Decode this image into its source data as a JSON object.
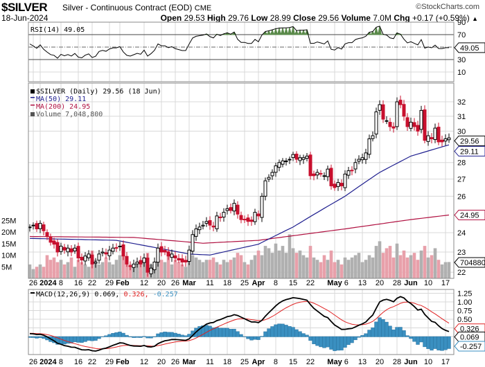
{
  "header": {
    "symbol": "$SILVER",
    "description": "Silver - Continuous Contract (EOD)",
    "exchange": "CME",
    "brand": "©StockCharts.com",
    "date": "18-Jun-2024",
    "open_label": "Open",
    "open": "29.53",
    "high_label": "High",
    "high": "29.76",
    "low_label": "Low",
    "low": "28.99",
    "close_label": "Close",
    "close": "29.56",
    "volume_label": "Volume",
    "volume": "7.0M",
    "chg_label": "Chg",
    "chg": "+0.17 (+0.59%)",
    "chg_arrow": "▲"
  },
  "colors": {
    "up": "#000000",
    "down": "#c8102e",
    "ma50": "#1f1f8f",
    "ma200": "#b01040",
    "vol_up": "#b0b0b0",
    "vol_down": "#e8a0aa",
    "macd": "#000000",
    "signal": "#e02020",
    "hist": "#3a8fc0",
    "grid": "#d8d8d8"
  },
  "chart_data": [
    {
      "type": "line",
      "title": "RSI(14) 49.05",
      "legend": "RSI(14) 49.05",
      "yticks": [
        90,
        70,
        30,
        10
      ],
      "ylim": [
        0,
        100
      ],
      "guides": [
        70,
        50,
        30
      ],
      "last_label": "49.05"
    },
    {
      "type": "candlestick",
      "title": "$SILVER (Daily) 29.56 (18 Jun)",
      "legend": [
        "$SILVER (Daily) 29.56 (18 Jun)",
        "MA(50) 29.11",
        "MA(200) 24.95",
        "Volume 7,048,800"
      ],
      "yticks": [
        32,
        31,
        30,
        28,
        27,
        26,
        24,
        23,
        22
      ],
      "vol_ticks": [
        "25M",
        "20M",
        "15M",
        "10M",
        "5M"
      ],
      "vol_tick_values": [
        25,
        20,
        15,
        10,
        5
      ],
      "last_labels": {
        "close": "29.56",
        "ma50": "29.11",
        "ma200": "24.95",
        "volume": "7048800"
      },
      "closes": [
        24.3,
        24.4,
        24.2,
        24.5,
        24.1,
        23.8,
        23.5,
        23.4,
        23.0,
        23.3,
        23.1,
        23.2,
        23.0,
        23.2,
        22.7,
        22.6,
        22.8,
        22.9,
        22.4,
        22.5,
        22.9,
        23.0,
        22.9,
        23.1,
        23.2,
        23.2,
        23.3,
        22.8,
        22.4,
        22.3,
        22.4,
        22.5,
        22.4,
        22.7,
        22.0,
        22.2,
        22.5,
        23.2,
        23.0,
        23.0,
        22.8,
        22.9,
        22.7,
        22.6,
        22.5,
        22.5,
        23.1,
        23.9,
        24.2,
        24.3,
        24.4,
        24.6,
        24.4,
        24.3,
        24.9,
        24.8,
        25.1,
        25.3,
        25.2,
        25.6,
        25.0,
        24.7,
        24.7,
        24.6,
        24.6,
        25.1,
        24.9,
        26.0,
        26.9,
        27.1,
        27.4,
        27.8,
        28.0,
        28.1,
        28.1,
        28.2,
        28.5,
        28.2,
        28.3,
        28.3,
        28.4,
        27.2,
        27.2,
        27.4,
        27.3,
        27.2,
        27.6,
        26.6,
        26.5,
        26.8,
        26.6,
        27.3,
        27.5,
        27.5,
        28.0,
        28.2,
        28.3,
        28.6,
        29.5,
        29.7,
        31.3,
        31.8,
        30.8,
        30.7,
        30.3,
        30.2,
        32.0,
        31.8,
        31.0,
        30.3,
        30.6,
        30.3,
        30.0,
        31.4,
        29.4,
        29.7,
        29.5,
        30.2,
        29.3,
        29.3,
        29.5,
        29.56
      ],
      "volumes_millions": [
        6,
        4,
        5,
        6,
        5,
        10,
        8,
        9,
        7,
        8,
        6,
        7,
        9,
        5,
        8,
        7,
        6,
        5,
        12,
        8,
        6,
        7,
        9,
        7,
        6,
        8,
        10,
        13,
        7,
        6,
        5,
        6,
        7,
        9,
        11,
        6,
        7,
        12,
        8,
        7,
        10,
        6,
        8,
        7,
        6,
        5,
        9,
        10,
        9,
        8,
        7,
        8,
        8,
        9,
        7,
        6,
        8,
        7,
        8,
        9,
        11,
        10,
        7,
        6,
        8,
        10,
        12,
        10,
        14,
        13,
        11,
        15,
        12,
        14,
        11,
        19,
        13,
        11,
        12,
        10,
        9,
        14,
        9,
        8,
        7,
        10,
        8,
        12,
        7,
        8,
        6,
        9,
        8,
        9,
        10,
        11,
        7,
        8,
        10,
        9,
        14,
        16,
        11,
        13,
        14,
        9,
        15,
        10,
        12,
        9,
        10,
        11,
        8,
        12,
        14,
        9,
        10,
        13,
        8,
        6,
        7,
        7.05
      ],
      "ma50_points": [
        [
          0,
          23.7
        ],
        [
          25,
          23.6
        ],
        [
          46,
          22.9
        ],
        [
          52,
          22.85
        ],
        [
          66,
          23.4
        ],
        [
          76,
          24.3
        ],
        [
          91,
          26.0
        ],
        [
          101,
          27.4
        ],
        [
          110,
          28.4
        ],
        [
          121,
          29.11
        ]
      ],
      "ma200_points": [
        [
          0,
          23.8
        ],
        [
          30,
          23.75
        ],
        [
          50,
          23.45
        ],
        [
          66,
          23.6
        ],
        [
          91,
          24.2
        ],
        [
          110,
          24.7
        ],
        [
          121,
          24.95
        ]
      ]
    },
    {
      "type": "line",
      "title": "MACD(12,26,9)",
      "legend_name": "MACD(12,26,9)",
      "legend_macd": "0.069",
      "legend_signal": "0.326",
      "legend_hist": "-0.257",
      "yticks": [
        "1.25",
        "1.00",
        "0.75",
        "0.50"
      ],
      "ytick_values": [
        1.25,
        1.0,
        0.75,
        0.5
      ],
      "last_labels": {
        "signal": "0.326",
        "macd": "0.069",
        "hist": "-0.257"
      }
    }
  ],
  "x_labels": [
    {
      "label": "26",
      "idx": 1
    },
    {
      "label": "2024",
      "idx": 3,
      "bold": true
    },
    {
      "label": "8",
      "idx": 9
    },
    {
      "label": "16",
      "idx": 14
    },
    {
      "label": "22",
      "idx": 18
    },
    {
      "label": "29",
      "idx": 23
    },
    {
      "label": "Feb",
      "idx": 26,
      "bold": true
    },
    {
      "label": "12",
      "idx": 33
    },
    {
      "label": "20",
      "idx": 38
    },
    {
      "label": "26",
      "idx": 42
    },
    {
      "label": "Mar",
      "idx": 46,
      "bold": true
    },
    {
      "label": "11",
      "idx": 52
    },
    {
      "label": "18",
      "idx": 57
    },
    {
      "label": "25",
      "idx": 62
    },
    {
      "label": "Apr",
      "idx": 66,
      "bold": true
    },
    {
      "label": "8",
      "idx": 71
    },
    {
      "label": "15",
      "idx": 76
    },
    {
      "label": "22",
      "idx": 81
    },
    {
      "label": "May",
      "idx": 88,
      "bold": true
    },
    {
      "label": "6",
      "idx": 91
    },
    {
      "label": "13",
      "idx": 96
    },
    {
      "label": "20",
      "idx": 101
    },
    {
      "label": "28",
      "idx": 106
    },
    {
      "label": "Jun",
      "idx": 110,
      "bold": true
    },
    {
      "label": "10",
      "idx": 115
    },
    {
      "label": "17",
      "idx": 120
    }
  ]
}
